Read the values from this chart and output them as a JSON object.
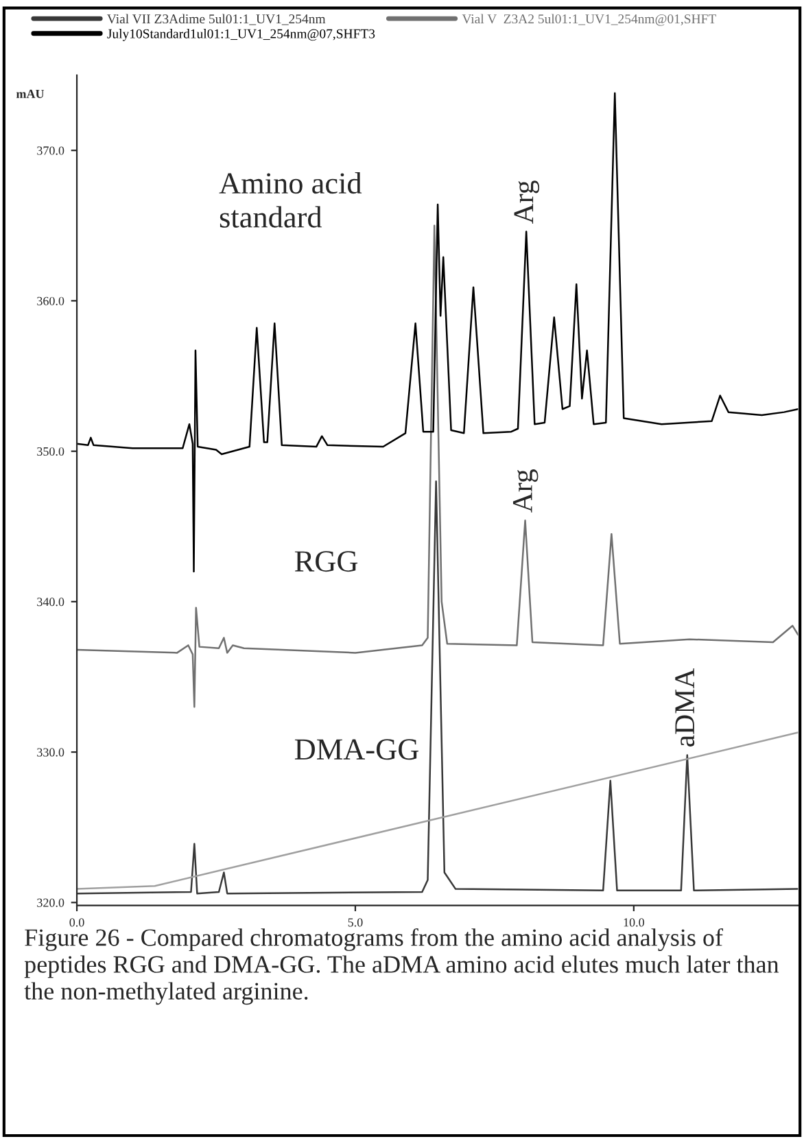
{
  "chart_data": {
    "type": "line",
    "ylabel": "mAU",
    "xlim": [
      0,
      12.95
    ],
    "ylim": [
      319.8,
      375
    ],
    "xticks": [
      {
        "value": 0,
        "label": "0.0"
      },
      {
        "value": 5,
        "label": "5.0"
      },
      {
        "value": 10,
        "label": "10.0"
      }
    ],
    "yticks": [
      {
        "value": 320,
        "label": "320.0"
      },
      {
        "value": 330,
        "label": "330.0"
      },
      {
        "value": 340,
        "label": "340.0"
      },
      {
        "value": 350,
        "label": "350.0"
      },
      {
        "value": 360,
        "label": "360.0"
      },
      {
        "value": 370,
        "label": "370.0"
      }
    ],
    "grid": false,
    "legend": "top",
    "marker": "none",
    "line_style": "solid",
    "series": [
      {
        "name": "Vial VII Z3Adime 5ul01:1_UV1_254nm",
        "color": "#383838",
        "x": [
          0,
          2.05,
          2.11,
          2.16,
          2.55,
          2.64,
          2.7,
          6.2,
          6.3,
          6.45,
          6.6,
          6.8,
          9.45,
          9.58,
          9.7,
          10.85,
          10.96,
          11.08,
          12.95
        ],
        "values": [
          320.6,
          320.7,
          323.9,
          320.6,
          320.7,
          322,
          320.6,
          320.7,
          321.5,
          348,
          322,
          320.9,
          320.8,
          328.1,
          320.8,
          320.8,
          329.8,
          320.8,
          320.9
        ]
      },
      {
        "name": "Vial V  Z3A2 5ul01:1_UV1_254nm@01,SHFT",
        "color": "#707070",
        "x": [
          0,
          1.8,
          2.0,
          2.08,
          2.11,
          2.14,
          2.2,
          2.55,
          2.64,
          2.7,
          2.8,
          3.0,
          5.0,
          6.2,
          6.3,
          6.42,
          6.55,
          6.65,
          7.9,
          8.05,
          8.18,
          9.45,
          9.6,
          9.75,
          11,
          12.5,
          12.85,
          12.95
        ],
        "values": [
          336.8,
          336.6,
          337.1,
          336.5,
          333,
          339.6,
          337,
          336.9,
          337.6,
          336.6,
          337.1,
          336.9,
          336.6,
          337.1,
          337.6,
          365,
          340,
          337.2,
          337.1,
          345.4,
          337.3,
          337.1,
          344.5,
          337.2,
          337.5,
          337.3,
          338.4,
          337.8
        ]
      },
      {
        "name": "July10Standard1ul01:1_UV1_254nm@07,SHFT3",
        "color": "#000000",
        "x": [
          0,
          0.2,
          0.25,
          0.3,
          1.0,
          1.9,
          2.02,
          2.08,
          2.1,
          2.13,
          2.17,
          2.5,
          2.6,
          3.1,
          3.23,
          3.36,
          3.42,
          3.55,
          3.68,
          4.3,
          4.4,
          4.5,
          5.5,
          5.9,
          6.08,
          6.22,
          6.4,
          6.48,
          6.53,
          6.58,
          6.72,
          6.95,
          7.12,
          7.3,
          7.8,
          7.92,
          8.07,
          8.22,
          8.4,
          8.57,
          8.72,
          8.85,
          8.97,
          9.07,
          9.16,
          9.28,
          9.5,
          9.66,
          9.82,
          10.5,
          11.4,
          11.55,
          11.7,
          12.3,
          12.7,
          12.95
        ],
        "values": [
          350.5,
          350.4,
          350.9,
          350.4,
          350.2,
          350.2,
          351.8,
          350.5,
          342,
          356.7,
          350.3,
          350.1,
          349.8,
          350.3,
          358.2,
          350.6,
          350.6,
          358.5,
          350.4,
          350.3,
          351.0,
          350.4,
          350.3,
          351.2,
          358.5,
          351.3,
          351.3,
          366.4,
          359,
          362.9,
          351.4,
          351.2,
          360.9,
          351.2,
          351.3,
          351.5,
          364.6,
          351.8,
          351.9,
          358.9,
          352.8,
          353.0,
          361.1,
          353.5,
          356.7,
          351.8,
          351.9,
          373.8,
          352.2,
          351.8,
          352.0,
          353.7,
          352.6,
          352.4,
          352.6,
          352.8
        ]
      },
      {
        "color": "#a0a0a0",
        "x": [
          0,
          1.4,
          12.95
        ],
        "values": [
          320.9,
          321.1,
          331.3
        ]
      }
    ],
    "annotations": [
      "Amino acid\nstandard",
      "RGG",
      "DMA-GG",
      {
        "text": "Arg",
        "x": 8.07,
        "y": 364.6
      },
      {
        "text": "Arg",
        "x": 8.05,
        "y": 345.4
      },
      {
        "text": "aDMA",
        "x": 10.96,
        "y": 329.8
      },
      "Figure 26 - Compared chromatograms from the amino acid analysis of peptides RGG and DMA-GG. The aDMA amino acid elutes much later than the non-methylated arginine."
    ]
  }
}
